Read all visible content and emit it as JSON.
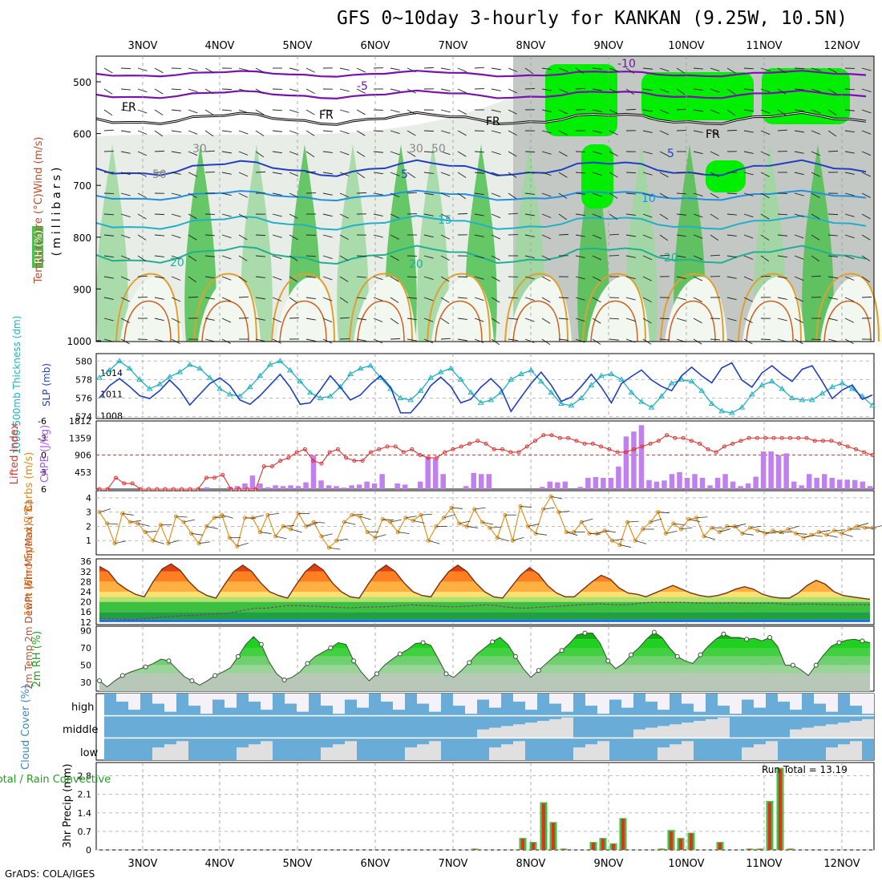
{
  "title": "GFS 0~10day 3-hourly for KANKAN (9.25W, 10.5N)",
  "credit": "GrADS: COLA/IGES",
  "dates": [
    "3NOV",
    "4NOV",
    "5NOV",
    "6NOV",
    "7NOV",
    "8NOV",
    "9NOV",
    "10NOV",
    "11NOV",
    "12NOV"
  ],
  "colors": {
    "rh_light": "#9fd79f",
    "rh_mid": "#4fc04f",
    "rh_high": "#00ee00",
    "rh_grey": "#c4c8c4",
    "temp_line": "#7a10b0",
    "dewpt": "#555555",
    "cape_bar": "#c080f0",
    "li_line": "#e03030",
    "wind_line": "#e08a10",
    "thickness": "#20b0c0",
    "slp": "#1f3fbf",
    "cloud_blue": "#6aacd8",
    "cloud_low": "#e0e0e0",
    "precip_green": "#40c040",
    "precip_red": "#e03020"
  },
  "panels": {
    "upper_air": {
      "ylabel_left": "Temperature (°C)Wind (m/s)",
      "ylabel_rh": "RH (%)",
      "ylabel_axis": "(millibars)",
      "y_ticks": [
        "500",
        "600",
        "700",
        "800",
        "900",
        "1000"
      ],
      "labels": [
        "-10",
        "-5",
        "FR",
        "FR",
        "FR",
        "FR",
        "5",
        "5",
        "10",
        "15",
        "20",
        "20",
        "20",
        "50",
        "50",
        "30",
        "30"
      ]
    },
    "thickness": {
      "ylabel": "1000-500mb Thickness (dm)",
      "ylabel_right": "SLP (mb)",
      "left_ticks": [
        "580",
        "578",
        "576",
        "574"
      ],
      "right_ticks": [
        "1014",
        "1011",
        "1008"
      ]
    },
    "cape": {
      "ylabel_left": "Lifted Index",
      "ylabel_right": "CAPE (J/kg)",
      "left_ticks": [
        "-6",
        "-3",
        "0",
        "3",
        "6"
      ],
      "right_ticks": [
        "1812",
        "1359",
        "906",
        "453"
      ]
    },
    "wind10": {
      "ylabel": "10m Wind Speed & Barbs (m/s)",
      "ticks": [
        "4",
        "3",
        "2",
        "1"
      ]
    },
    "temp2m": {
      "ylabel": "2m Temp 2m DewPt (6hr Min/Max) (°C)",
      "ticks": [
        "36",
        "32",
        "28",
        "24",
        "20",
        "16",
        "12"
      ]
    },
    "rh2m": {
      "ylabel": "2m RH (%)",
      "ticks": [
        "90",
        "70",
        "50",
        "30"
      ]
    },
    "cloud": {
      "ylabel": "Cloud Cover (%)",
      "levels": [
        "high",
        "middle",
        "low"
      ]
    },
    "precip": {
      "ylabel": "3hr Precip (mm)",
      "ylabel_left": "Total / Rain Convective",
      "ticks": [
        "2.8",
        "2.1",
        "1.4",
        "0.7",
        "0"
      ],
      "run_total": "Run Total = 13.19"
    }
  },
  "chart_data": [
    {
      "type": "line",
      "title": "1000-500mb Thickness (dm) / SLP (mb)",
      "series": [
        {
          "name": "1000-500mb Thickness (dm)",
          "values": [
            578.2,
            579.0,
            580.0,
            579.2,
            578.0,
            577.0,
            577.5,
            578.3,
            578.8,
            579.6,
            579.2,
            578.2,
            577.0,
            576.4,
            576.2,
            577.2,
            578.4,
            579.6,
            580.0,
            579.0,
            577.8,
            576.6,
            576.0,
            576.2,
            577.2,
            578.6,
            579.2,
            579.5,
            578.2,
            577.0,
            576.0,
            575.8,
            576.8,
            578.2,
            578.8,
            579.2,
            578.0,
            576.6,
            575.5,
            575.8,
            576.6,
            578.0,
            578.6,
            579.0,
            577.8,
            576.6,
            575.4,
            575.2,
            576.0,
            577.4,
            578.4,
            578.6,
            578.0,
            576.6,
            575.6,
            575.0,
            576.2,
            577.6,
            578.0,
            577.8,
            576.8,
            575.4,
            574.6,
            574.4,
            575.0,
            576.4,
            577.4,
            577.8,
            577.0,
            576.0,
            575.8,
            575.8,
            576.5,
            577.2,
            577.6,
            577.0,
            576.2,
            575.2
          ]
        },
        {
          "name": "SLP (mb)",
          "values": [
            1010.5,
            1012.2,
            1013.2,
            1012.1,
            1010.8,
            1010.4,
            1011.5,
            1013.0,
            1011.6,
            1009.5,
            1011.0,
            1012.5,
            1013.3,
            1012.2,
            1010.2,
            1009.6,
            1010.8,
            1012.3,
            1013.8,
            1012.0,
            1009.6,
            1009.8,
            1011.6,
            1013.6,
            1012.0,
            1010.2,
            1010.9,
            1012.4,
            1013.6,
            1012.0,
            1008.4,
            1008.4,
            1010.0,
            1012.2,
            1013.4,
            1012.1,
            1009.8,
            1010.3,
            1012.0,
            1013.2,
            1011.8,
            1008.6,
            1010.6,
            1012.5,
            1014.1,
            1012.3,
            1010.0,
            1010.6,
            1012.1,
            1013.8,
            1012.0,
            1009.8,
            1012.5,
            1013.5,
            1014.4,
            1013.0,
            1012.1,
            1011.5,
            1013.6,
            1014.8,
            1013.6,
            1012.6,
            1014.7,
            1015.4,
            1013.0,
            1012.0,
            1014.0,
            1015.0,
            1013.8,
            1012.8,
            1014.5,
            1015.0,
            1012.8,
            1010.4,
            1011.6,
            1012.3,
            1010.3,
            1010.9
          ]
        }
      ],
      "left_axis": {
        "label": "1000-500mb Thickness (dm)",
        "ticks": [
          574,
          576,
          578,
          580
        ],
        "range": [
          573.8,
          580.8
        ]
      },
      "right_axis": {
        "label": "SLP (mb)",
        "ticks": [
          1008,
          1011,
          1014
        ],
        "range": [
          1007.6,
          1016.7
        ]
      }
    },
    {
      "type": "bar",
      "title": "CAPE (J/kg) / Lifted Index",
      "series": [
        {
          "name": "CAPE (J/kg)",
          "values": [
            0,
            0,
            0,
            0,
            0,
            0,
            0,
            0,
            0,
            0,
            0,
            0,
            0,
            0,
            50,
            0,
            0,
            60,
            80,
            150,
            360,
            150,
            50,
            100,
            80,
            100,
            80,
            180,
            900,
            230,
            100,
            80,
            40,
            100,
            120,
            200,
            150,
            400,
            0,
            150,
            120,
            0,
            200,
            850,
            810,
            400,
            0,
            0,
            80,
            430,
            400,
            400,
            0,
            0,
            0,
            0,
            0,
            0,
            60,
            200,
            180,
            200,
            0,
            60,
            300,
            320,
            300,
            300,
            600,
            1400,
            1530,
            1700,
            240,
            200,
            230,
            400,
            450,
            300,
            400,
            300,
            100,
            300,
            400,
            200,
            80,
            150,
            330,
            1000,
            1000,
            900,
            950,
            200,
            100,
            400,
            300,
            400,
            300,
            250,
            250,
            240,
            200,
            80
          ]
        },
        {
          "name": "Lifted Index",
          "values": [
            6,
            6,
            4,
            5,
            5,
            6,
            6,
            6,
            6,
            6,
            6,
            6,
            6,
            4,
            4,
            3.5,
            6,
            6,
            6,
            6,
            2,
            2,
            1,
            0.5,
            -0.5,
            -1,
            1,
            1.5,
            -0.5,
            -1,
            0.5,
            1,
            1,
            -0.5,
            -1,
            -1.5,
            -1.5,
            -0.5,
            -1,
            0,
            0.5,
            0.5,
            -0.5,
            -1,
            -1.5,
            -2,
            -2.5,
            -2,
            -1,
            -1,
            -0.5,
            -0.5,
            -1.5,
            -2.5,
            -3.5,
            -3.5,
            -3,
            -3,
            -2.5,
            -2,
            -2,
            -1.5,
            -1,
            -0.5,
            -0.5,
            -1,
            -1.5,
            -2,
            -2.5,
            -3.5,
            -3,
            -3,
            -2.5,
            -2,
            -1,
            -0.5,
            -1.5,
            -2,
            -2.5,
            -3,
            -3,
            -3,
            -3,
            -3,
            -3,
            -3,
            -3,
            -2.5,
            -2.5,
            -2.5,
            -2,
            -1.5,
            -1,
            -0.5,
            0
          ]
        }
      ],
      "left_axis": {
        "label": "Lifted Index",
        "ticks": [
          -6,
          -3,
          0,
          3,
          6
        ],
        "range": [
          -6,
          6
        ],
        "inverted": true
      },
      "right_axis": {
        "label": "CAPE (J/kg)",
        "ticks": [
          453,
          906,
          1359,
          1812
        ],
        "range": [
          0,
          1812
        ]
      }
    },
    {
      "type": "line",
      "title": "10m Wind Speed & Barbs (m/s)",
      "series": [
        {
          "name": "10m Wind Speed",
          "values": [
            3.0,
            2.2,
            0.8,
            2.9,
            2.3,
            2.2,
            1.6,
            1.0,
            2.1,
            0.8,
            2.7,
            2.3,
            1.5,
            0.8,
            2.0,
            2.6,
            2.8,
            1.2,
            0.6,
            2.6,
            2.6,
            1.6,
            2.8,
            1.3,
            2.0,
            1.8,
            2.9,
            2.0,
            2.3,
            1.3,
            0.5,
            1.0,
            2.3,
            2.8,
            2.7,
            1.6,
            1.2,
            2.5,
            2.3,
            1.6,
            2.6,
            2.4,
            2.8,
            1.0,
            2.0,
            2.6,
            3.3,
            2.2,
            2.0,
            3.2,
            2.3,
            1.9,
            1.2,
            2.8,
            1.0,
            3.4,
            2.0,
            1.5,
            3.2,
            4.1,
            3.0,
            1.6,
            1.6,
            2.3,
            1.5,
            1.5,
            1.7,
            1.0,
            0.7,
            2.3,
            1.0,
            1.8,
            2.3,
            3.0,
            1.5,
            2.2,
            1.8,
            2.5,
            2.6,
            1.3,
            1.9,
            1.6,
            2.0,
            2.0,
            1.5,
            1.9,
            1.7,
            1.5,
            1.7,
            1.6,
            1.8,
            1.5,
            1.2,
            1.4,
            1.6,
            1.4,
            1.7,
            1.5,
            1.8,
            2.0,
            1.9,
            1.9
          ]
        }
      ],
      "y_axis": {
        "label": "10m Wind Speed & Barbs (m/s)",
        "ticks": [
          1,
          2,
          3,
          4
        ],
        "range": [
          0,
          4.5
        ]
      }
    },
    {
      "type": "area",
      "title": "2m Temp / 2m DewPt (6hr Min/Max)",
      "series": [
        {
          "name": "2m Temp",
          "values": [
            34.0,
            32.0,
            27.5,
            25.0,
            23.0,
            22.0,
            28.0,
            33.0,
            35.0,
            32.5,
            28.0,
            24.5,
            22.5,
            21.5,
            27.0,
            32.0,
            34.5,
            32.0,
            27.5,
            24.0,
            22.5,
            21.5,
            27.0,
            32.0,
            35.0,
            32.5,
            27.5,
            24.0,
            22.0,
            21.5,
            27.0,
            32.0,
            34.5,
            32.0,
            27.5,
            24.0,
            22.5,
            22.0,
            27.5,
            32.0,
            34.5,
            32.0,
            27.5,
            24.0,
            22.0,
            21.5,
            26.0,
            30.5,
            33.5,
            31.0,
            26.5,
            23.5,
            22.0,
            22.0,
            25.0,
            28.0,
            30.5,
            29.0,
            25.5,
            23.5,
            23.0,
            22.0,
            23.5,
            25.0,
            26.5,
            25.0,
            23.5,
            22.5,
            22.0,
            22.5,
            23.5,
            25.0,
            26.0,
            25.0,
            23.0,
            22.0,
            21.5,
            21.5,
            23.5,
            26.5,
            28.5,
            27.0,
            24.0,
            22.5,
            22.0,
            21.5,
            21.0
          ]
        },
        {
          "name": "2m DewPt",
          "values": [
            13.5,
            13.3,
            13.2,
            13.0,
            13.2,
            13.5,
            14.0,
            14.2,
            14.6,
            14.6,
            15.0,
            15.2,
            15.4,
            16.0,
            16.8,
            17.5,
            17.5,
            18.0,
            18.5,
            18.5,
            18.4,
            18.2,
            18.0,
            17.8,
            17.6,
            17.8,
            18.0,
            18.0,
            18.2,
            18.5,
            18.8,
            18.6,
            18.4,
            18.2,
            18.0,
            18.2,
            18.5,
            18.8,
            18.6,
            18.0,
            17.6,
            17.5,
            17.8,
            18.0,
            18.3,
            18.5,
            18.8,
            19.0,
            19.2,
            19.0,
            18.8,
            19.0,
            19.5,
            19.8,
            19.8,
            19.8,
            19.8,
            19.6,
            19.5,
            19.5,
            19.5,
            19.6,
            19.4,
            19.4,
            19.5,
            19.4,
            19.0,
            19.0,
            19.2,
            19.0,
            19.0,
            18.8,
            18.8,
            18.9,
            18.8
          ]
        }
      ],
      "y_axis": {
        "label": "2m Temp 2m DewPt (6hr Min/Max) (°C)",
        "ticks": [
          12,
          16,
          20,
          24,
          28,
          32,
          36
        ],
        "range": [
          11,
          37
        ]
      }
    },
    {
      "type": "area",
      "title": "2m RH (%)",
      "series": [
        {
          "name": "2m RH",
          "values": [
            32,
            25,
            32,
            38,
            42,
            45,
            48,
            52,
            57,
            55,
            46,
            37,
            32,
            27,
            32,
            38,
            42,
            47,
            60,
            74,
            83,
            74,
            54,
            40,
            33,
            36,
            42,
            52,
            60,
            65,
            70,
            76,
            74,
            55,
            42,
            32,
            40,
            50,
            57,
            63,
            68,
            75,
            76,
            73,
            57,
            40,
            36,
            44,
            53,
            63,
            70,
            77,
            82,
            74,
            60,
            46,
            36,
            44,
            52,
            60,
            67,
            75,
            85,
            87,
            87,
            75,
            55,
            46,
            52,
            62,
            70,
            80,
            88,
            82,
            70,
            60,
            55,
            52,
            62,
            72,
            80,
            86,
            82,
            82,
            80,
            81,
            78,
            82,
            72,
            50,
            50,
            45,
            38,
            50,
            62,
            72,
            76,
            79,
            80,
            78,
            76
          ]
        }
      ],
      "y_axis": {
        "label": "2m RH (%)",
        "ticks": [
          30,
          50,
          70,
          90
        ],
        "range": [
          20,
          95
        ]
      }
    },
    {
      "type": "bar",
      "title": "3hr Precip (mm)",
      "series": [
        {
          "name": "Total",
          "values": [
            0.05,
            0.45,
            0.3,
            1.8,
            1.05,
            0.05,
            0.3,
            0.45,
            0.25,
            1.2,
            0.0,
            0.05,
            0.75,
            0.45,
            0.65,
            0.0,
            0.3,
            0.05,
            0.05,
            1.85,
            3.1,
            0.05
          ]
        },
        {
          "name": "Rain Convective",
          "values": [
            0.04,
            0.42,
            0.27,
            1.75,
            1.02,
            0.04,
            0.27,
            0.42,
            0.22,
            1.18,
            0.0,
            0.04,
            0.7,
            0.42,
            0.62,
            0.0,
            0.27,
            0.04,
            0.04,
            1.8,
            3.05,
            0.04
          ]
        }
      ],
      "categories": [
        "7NOV",
        "8NOV",
        "8NOV",
        "8NOV",
        "8NOV",
        "8NOV",
        "9NOV",
        "9NOV",
        "9NOV",
        "9NOV",
        "9NOV",
        "10NOV",
        "10NOV",
        "10NOV",
        "10NOV",
        "10NOV",
        "10NOV",
        "11NOV",
        "11NOV",
        "11NOV",
        "11NOV",
        "11NOV"
      ],
      "y_axis": {
        "label": "3hr Precip (mm)",
        "ticks": [
          0,
          0.7,
          1.4,
          2.1,
          2.8
        ],
        "range": [
          0,
          3.3
        ]
      }
    }
  ]
}
